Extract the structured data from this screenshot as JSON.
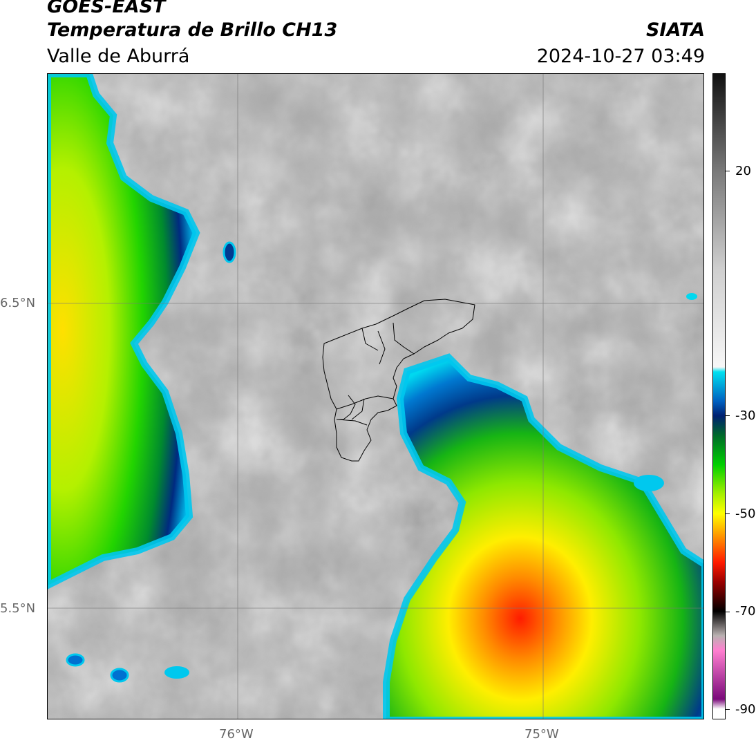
{
  "header": {
    "satellite": "GOES-EAST",
    "product": "Temperatura de Brillo CH13",
    "region": "Valle de Aburrá",
    "source": "SIATA",
    "datetime": "2024-10-27 03:49"
  },
  "map": {
    "lat_labels": [
      "6.5°N",
      "5.5°N"
    ],
    "lon_labels": [
      "76°W",
      "75°W"
    ]
  },
  "colorbar": {
    "ticks": [
      "20",
      "-30",
      "-50",
      "-70",
      "-90"
    ],
    "tick_values": [
      20,
      -30,
      -50,
      -70,
      -90
    ],
    "range": [
      -92,
      40
    ],
    "stops": [
      {
        "value": 40,
        "color": "#111111"
      },
      {
        "value": 20,
        "color": "#7a7a7a"
      },
      {
        "value": 0,
        "color": "#cfcfcf"
      },
      {
        "value": -20,
        "color": "#f7f7f7"
      },
      {
        "value": -21,
        "color": "#00e0f0"
      },
      {
        "value": -27,
        "color": "#0060c0"
      },
      {
        "value": -30,
        "color": "#001f70"
      },
      {
        "value": -34,
        "color": "#006a2a"
      },
      {
        "value": -40,
        "color": "#00d000"
      },
      {
        "value": -46,
        "color": "#a6f000"
      },
      {
        "value": -50,
        "color": "#ffff00"
      },
      {
        "value": -55,
        "color": "#ff8c00"
      },
      {
        "value": -60,
        "color": "#ff1a00"
      },
      {
        "value": -64,
        "color": "#9a0000"
      },
      {
        "value": -70,
        "color": "#000000"
      },
      {
        "value": -75,
        "color": "#b9b1b1"
      },
      {
        "value": -78,
        "color": "#ff7fd0"
      },
      {
        "value": -88,
        "color": "#7a0a7a"
      },
      {
        "value": -90,
        "color": "#ffffff"
      }
    ]
  }
}
